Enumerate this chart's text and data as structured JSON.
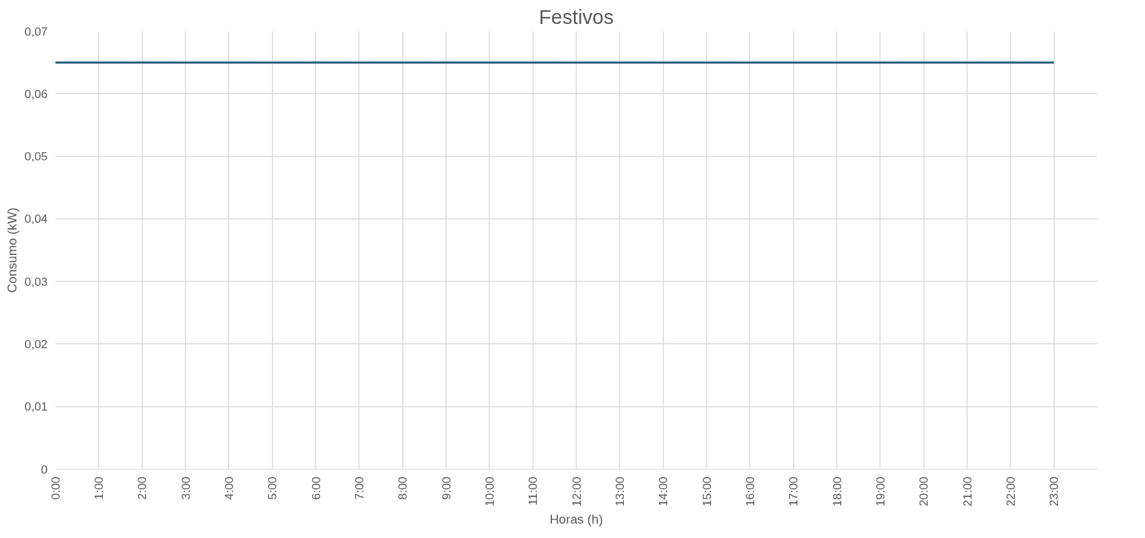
{
  "chart_data": {
    "type": "line",
    "title": "Festivos",
    "xlabel": "Horas (h)",
    "ylabel": "Consumo (kW)",
    "categories": [
      "0:00",
      "1:00",
      "2:00",
      "3:00",
      "4:00",
      "5:00",
      "6:00",
      "7:00",
      "8:00",
      "9:00",
      "10:00",
      "11:00",
      "12:00",
      "13:00",
      "14:00",
      "15:00",
      "16:00",
      "17:00",
      "18:00",
      "19:00",
      "20:00",
      "21:00",
      "22:00",
      "23:00"
    ],
    "series": [
      {
        "color": "#1f5c7a",
        "values": [
          0.065,
          0.065,
          0.065,
          0.065,
          0.065,
          0.065,
          0.065,
          0.065,
          0.065,
          0.065,
          0.065,
          0.065,
          0.065,
          0.065,
          0.065,
          0.065,
          0.065,
          0.065,
          0.065,
          0.065,
          0.065,
          0.065,
          0.065,
          0.065
        ]
      }
    ],
    "ylim": [
      0,
      0.07
    ],
    "yticks": [
      0,
      {
        "value": 0.01,
        "label": "0,01"
      },
      {
        "value": 0.02,
        "label": "0,02"
      },
      {
        "value": 0.03,
        "label": "0,03"
      },
      {
        "value": 0.04,
        "label": "0,04"
      },
      {
        "value": 0.05,
        "label": "0,05"
      },
      {
        "value": 0.06,
        "label": "0,06"
      },
      {
        "value": 0.07,
        "label": "0,07"
      }
    ],
    "grid": true,
    "line_style": "solid",
    "marker": "none"
  }
}
